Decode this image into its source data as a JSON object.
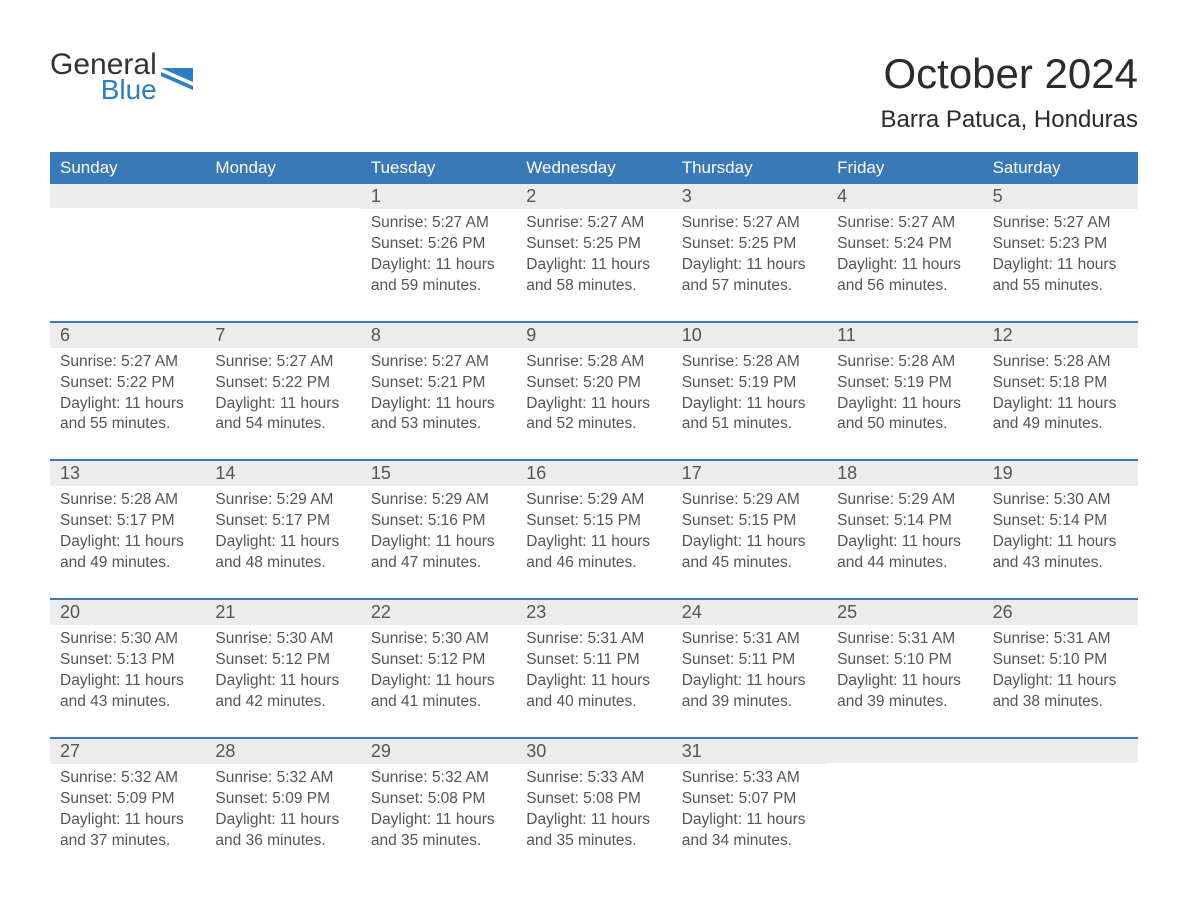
{
  "logo": {
    "word1": "General",
    "word2": "Blue"
  },
  "title": "October 2024",
  "location": "Barra Patuca, Honduras",
  "colors": {
    "header_blue": "#3a79b7",
    "day_header_bg": "#ececec",
    "text_dark": "#3a3a3a",
    "logo_blue": "#2d7ec4",
    "background": "#ffffff"
  },
  "weekdays": [
    "Sunday",
    "Monday",
    "Tuesday",
    "Wednesday",
    "Thursday",
    "Friday",
    "Saturday"
  ],
  "weeks": [
    [
      {
        "empty": true
      },
      {
        "empty": true
      },
      {
        "day": 1,
        "sunrise": "5:27 AM",
        "sunset": "5:26 PM",
        "daylight": "11 hours and 59 minutes."
      },
      {
        "day": 2,
        "sunrise": "5:27 AM",
        "sunset": "5:25 PM",
        "daylight": "11 hours and 58 minutes."
      },
      {
        "day": 3,
        "sunrise": "5:27 AM",
        "sunset": "5:25 PM",
        "daylight": "11 hours and 57 minutes."
      },
      {
        "day": 4,
        "sunrise": "5:27 AM",
        "sunset": "5:24 PM",
        "daylight": "11 hours and 56 minutes."
      },
      {
        "day": 5,
        "sunrise": "5:27 AM",
        "sunset": "5:23 PM",
        "daylight": "11 hours and 55 minutes."
      }
    ],
    [
      {
        "day": 6,
        "sunrise": "5:27 AM",
        "sunset": "5:22 PM",
        "daylight": "11 hours and 55 minutes."
      },
      {
        "day": 7,
        "sunrise": "5:27 AM",
        "sunset": "5:22 PM",
        "daylight": "11 hours and 54 minutes."
      },
      {
        "day": 8,
        "sunrise": "5:27 AM",
        "sunset": "5:21 PM",
        "daylight": "11 hours and 53 minutes."
      },
      {
        "day": 9,
        "sunrise": "5:28 AM",
        "sunset": "5:20 PM",
        "daylight": "11 hours and 52 minutes."
      },
      {
        "day": 10,
        "sunrise": "5:28 AM",
        "sunset": "5:19 PM",
        "daylight": "11 hours and 51 minutes."
      },
      {
        "day": 11,
        "sunrise": "5:28 AM",
        "sunset": "5:19 PM",
        "daylight": "11 hours and 50 minutes."
      },
      {
        "day": 12,
        "sunrise": "5:28 AM",
        "sunset": "5:18 PM",
        "daylight": "11 hours and 49 minutes."
      }
    ],
    [
      {
        "day": 13,
        "sunrise": "5:28 AM",
        "sunset": "5:17 PM",
        "daylight": "11 hours and 49 minutes."
      },
      {
        "day": 14,
        "sunrise": "5:29 AM",
        "sunset": "5:17 PM",
        "daylight": "11 hours and 48 minutes."
      },
      {
        "day": 15,
        "sunrise": "5:29 AM",
        "sunset": "5:16 PM",
        "daylight": "11 hours and 47 minutes."
      },
      {
        "day": 16,
        "sunrise": "5:29 AM",
        "sunset": "5:15 PM",
        "daylight": "11 hours and 46 minutes."
      },
      {
        "day": 17,
        "sunrise": "5:29 AM",
        "sunset": "5:15 PM",
        "daylight": "11 hours and 45 minutes."
      },
      {
        "day": 18,
        "sunrise": "5:29 AM",
        "sunset": "5:14 PM",
        "daylight": "11 hours and 44 minutes."
      },
      {
        "day": 19,
        "sunrise": "5:30 AM",
        "sunset": "5:14 PM",
        "daylight": "11 hours and 43 minutes."
      }
    ],
    [
      {
        "day": 20,
        "sunrise": "5:30 AM",
        "sunset": "5:13 PM",
        "daylight": "11 hours and 43 minutes."
      },
      {
        "day": 21,
        "sunrise": "5:30 AM",
        "sunset": "5:12 PM",
        "daylight": "11 hours and 42 minutes."
      },
      {
        "day": 22,
        "sunrise": "5:30 AM",
        "sunset": "5:12 PM",
        "daylight": "11 hours and 41 minutes."
      },
      {
        "day": 23,
        "sunrise": "5:31 AM",
        "sunset": "5:11 PM",
        "daylight": "11 hours and 40 minutes."
      },
      {
        "day": 24,
        "sunrise": "5:31 AM",
        "sunset": "5:11 PM",
        "daylight": "11 hours and 39 minutes."
      },
      {
        "day": 25,
        "sunrise": "5:31 AM",
        "sunset": "5:10 PM",
        "daylight": "11 hours and 39 minutes."
      },
      {
        "day": 26,
        "sunrise": "5:31 AM",
        "sunset": "5:10 PM",
        "daylight": "11 hours and 38 minutes."
      }
    ],
    [
      {
        "day": 27,
        "sunrise": "5:32 AM",
        "sunset": "5:09 PM",
        "daylight": "11 hours and 37 minutes."
      },
      {
        "day": 28,
        "sunrise": "5:32 AM",
        "sunset": "5:09 PM",
        "daylight": "11 hours and 36 minutes."
      },
      {
        "day": 29,
        "sunrise": "5:32 AM",
        "sunset": "5:08 PM",
        "daylight": "11 hours and 35 minutes."
      },
      {
        "day": 30,
        "sunrise": "5:33 AM",
        "sunset": "5:08 PM",
        "daylight": "11 hours and 35 minutes."
      },
      {
        "day": 31,
        "sunrise": "5:33 AM",
        "sunset": "5:07 PM",
        "daylight": "11 hours and 34 minutes."
      },
      {
        "empty": true
      },
      {
        "empty": true
      }
    ]
  ],
  "labels": {
    "sunrise": "Sunrise:",
    "sunset": "Sunset:",
    "daylight": "Daylight:"
  }
}
